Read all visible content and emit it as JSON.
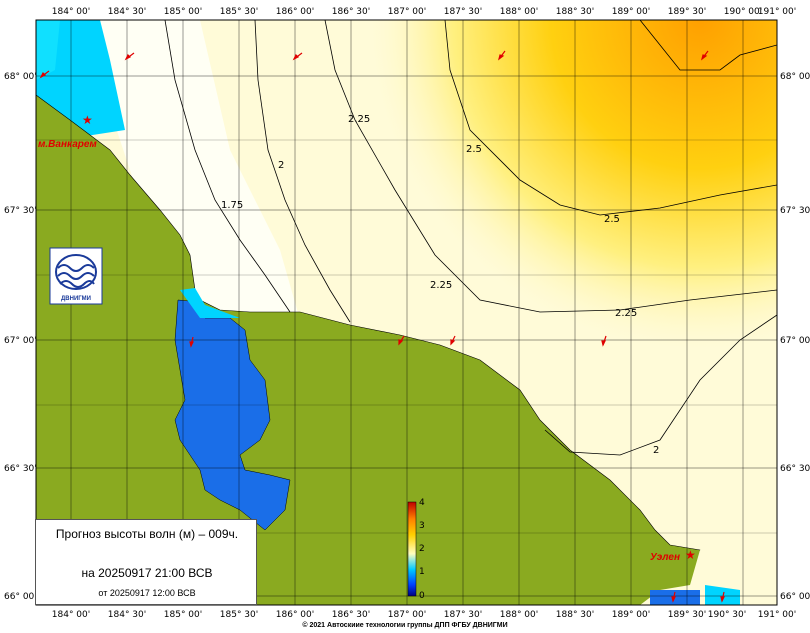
{
  "map": {
    "lon_labels": [
      "184° 00'",
      "184° 30'",
      "185° 00'",
      "185° 30'",
      "186° 00'",
      "186° 30'",
      "187° 00'",
      "187° 30'",
      "188° 00'",
      "188° 30'",
      "189° 00'",
      "189° 30'",
      "190° 00'",
      "190° 30'",
      "191° 00'"
    ],
    "lat_labels": [
      "68° 00'",
      "67° 30'",
      "67° 00'",
      "66° 30'",
      "66° 00'"
    ],
    "contour_labels": [
      "1.75",
      "2",
      "2.25",
      "2.5",
      "2.5",
      "2.25",
      "2.25",
      "2"
    ],
    "places": [
      "м.Ванкарем",
      "Уэлен"
    ],
    "logo_text": "ДВНИГМИ"
  },
  "scale": {
    "tick_labels": [
      "4",
      "3",
      "2",
      "1",
      "0"
    ],
    "colors": [
      "#000080",
      "#0040ff",
      "#00c8ff",
      "#ffffc0",
      "#ffd000",
      "#ff8000",
      "#c00000"
    ]
  },
  "legend": {
    "title": "Прогноз высоты волн (м) – 009ч.",
    "date": "на 20250917 21:00 ВСВ",
    "issued": "от 20250917 12:00 ВСВ"
  },
  "footer": {
    "copyright": "© 2021 Автоскиие технологии группы ДПП ФГБУ ДВНИГМИ"
  },
  "colors": {
    "land": "#8aaa20",
    "lagoon": "#1a6ee8",
    "sea_low": "#00d4ff",
    "sea_mid": "#fffbd8",
    "sea_high": "#ffc000",
    "wind_arrow": "#e00000"
  }
}
